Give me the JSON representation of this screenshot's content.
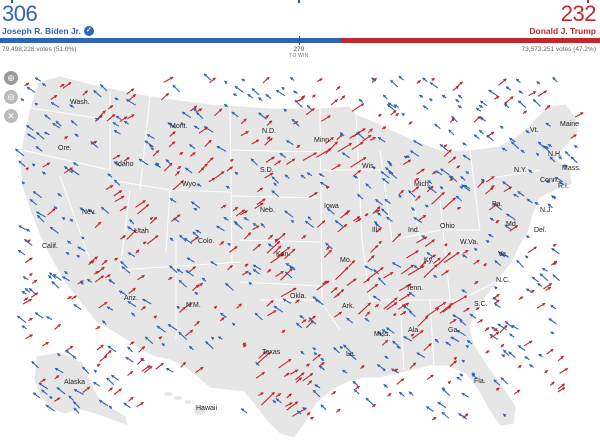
{
  "biden": {
    "electoral_votes": "306",
    "name": "Joseph R. Biden Jr.",
    "votes": "79,498,228 votes (51.0%)",
    "color": "#2f64b8"
  },
  "trump": {
    "electoral_votes": "232",
    "name": "Donald J. Trump",
    "votes": "73,573,251 votes (47.2%)",
    "color": "#c0282d"
  },
  "threshold": {
    "value": "270",
    "label": "TO WIN"
  },
  "bar": {
    "total_ev": 538,
    "biden_ev": 306,
    "trump_ev": 232,
    "win_ev": 270
  },
  "controls": {
    "zoom_in": "zoom-in-icon",
    "zoom_out": "zoom-out-icon",
    "reset": "close-icon"
  },
  "states": [
    {
      "label": "Wash."
    },
    {
      "label": "Ore."
    },
    {
      "label": "Idaho"
    },
    {
      "label": "Mont."
    },
    {
      "label": "Wyo."
    },
    {
      "label": "Nev."
    },
    {
      "label": "Calif."
    },
    {
      "label": "Utah"
    },
    {
      "label": "Colo."
    },
    {
      "label": "Ariz."
    },
    {
      "label": "N.M."
    },
    {
      "label": "N.D."
    },
    {
      "label": "S.D."
    },
    {
      "label": "Neb."
    },
    {
      "label": "Kan."
    },
    {
      "label": "Okla."
    },
    {
      "label": "Texas"
    },
    {
      "label": "Minn."
    },
    {
      "label": "Iowa"
    },
    {
      "label": "Mo."
    },
    {
      "label": "Ark."
    },
    {
      "label": "La."
    },
    {
      "label": "Wis."
    },
    {
      "label": "Ill."
    },
    {
      "label": "Mich."
    },
    {
      "label": "Ind."
    },
    {
      "label": "Ohio"
    },
    {
      "label": "Ky."
    },
    {
      "label": "Tenn."
    },
    {
      "label": "Miss."
    },
    {
      "label": "Ala."
    },
    {
      "label": "Ga."
    },
    {
      "label": "Fla."
    },
    {
      "label": "S.C."
    },
    {
      "label": "N.C."
    },
    {
      "label": "Va."
    },
    {
      "label": "W.Va."
    },
    {
      "label": "Pa."
    },
    {
      "label": "N.Y."
    },
    {
      "label": "Vt."
    },
    {
      "label": "N.H."
    },
    {
      "label": "Maine"
    },
    {
      "label": "Mass."
    },
    {
      "label": "R.I."
    },
    {
      "label": "Conn."
    },
    {
      "label": "N.J."
    },
    {
      "label": "Del."
    },
    {
      "label": "Md."
    },
    {
      "label": "Alaska"
    },
    {
      "label": "Hawaii"
    }
  ]
}
